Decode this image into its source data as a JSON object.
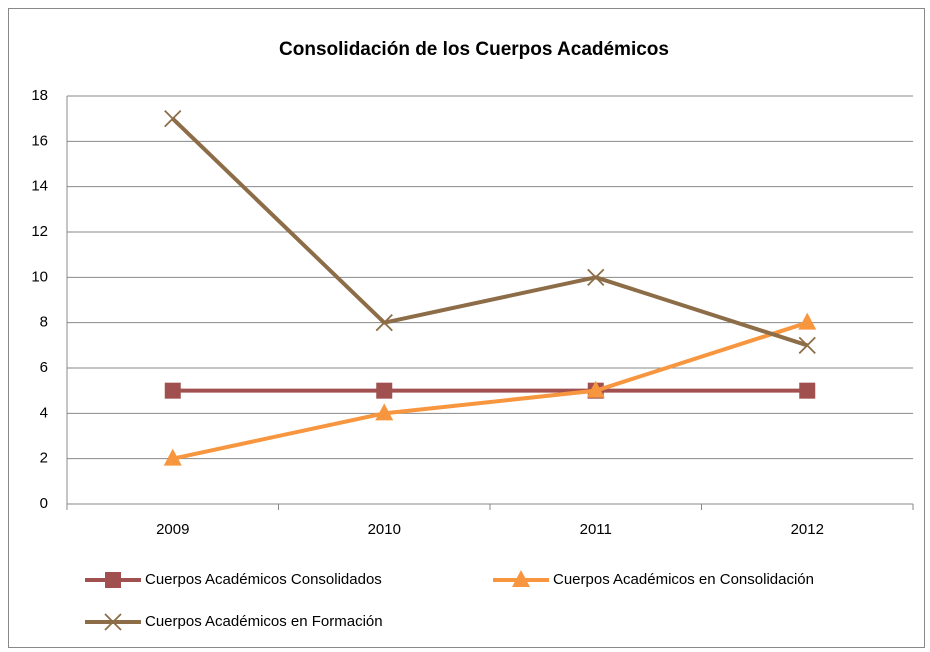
{
  "chart_data": {
    "type": "line",
    "title": "Consolidación de los Cuerpos Académicos",
    "categories": [
      "2009",
      "2010",
      "2011",
      "2012"
    ],
    "series": [
      {
        "name": "Cuerpos Académicos Consolidados",
        "color": "#a0504e",
        "marker": "square",
        "values": [
          5,
          5,
          5,
          5
        ]
      },
      {
        "name": "Cuerpos Académicos en Consolidación",
        "color": "#f7963f",
        "marker": "triangle",
        "values": [
          2,
          4,
          5,
          8
        ]
      },
      {
        "name": "Cuerpos Académicos en Formación",
        "color": "#8c6d48",
        "marker": "x",
        "values": [
          17,
          8,
          10,
          7
        ]
      }
    ],
    "ylim": [
      0,
      18
    ],
    "yticks": [
      0,
      2,
      4,
      6,
      8,
      10,
      12,
      14,
      16,
      18
    ],
    "grid": true,
    "legend": "bottom"
  }
}
